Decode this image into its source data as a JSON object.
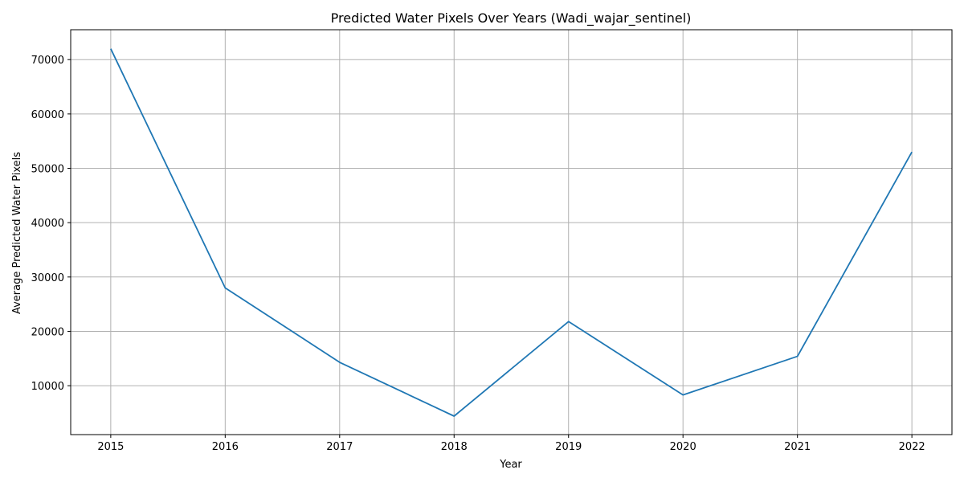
{
  "chart_data": {
    "type": "line",
    "title": "Predicted Water Pixels Over Years (Wadi_wajar_sentinel)",
    "xlabel": "Year",
    "ylabel": "Average Predicted Water Pixels",
    "x": [
      2015,
      2016,
      2017,
      2018,
      2019,
      2020,
      2021,
      2022
    ],
    "series": [
      {
        "values": [
          72000,
          28000,
          14300,
          4400,
          21800,
          8300,
          15400,
          53000
        ]
      }
    ],
    "xlim": [
      2014.65,
      2022.35
    ],
    "ylim": [
      1000,
      75500
    ],
    "xticks": [
      "2015",
      "2016",
      "2017",
      "2018",
      "2019",
      "2020",
      "2021",
      "2022"
    ],
    "yticks": [
      10000,
      20000,
      30000,
      40000,
      50000,
      60000,
      70000
    ],
    "ytick_labels": [
      "10000",
      "20000",
      "30000",
      "40000",
      "50000",
      "60000",
      "70000"
    ],
    "grid": true,
    "line_color": "#1f77b4",
    "grid_color": "#b0b0b0"
  }
}
